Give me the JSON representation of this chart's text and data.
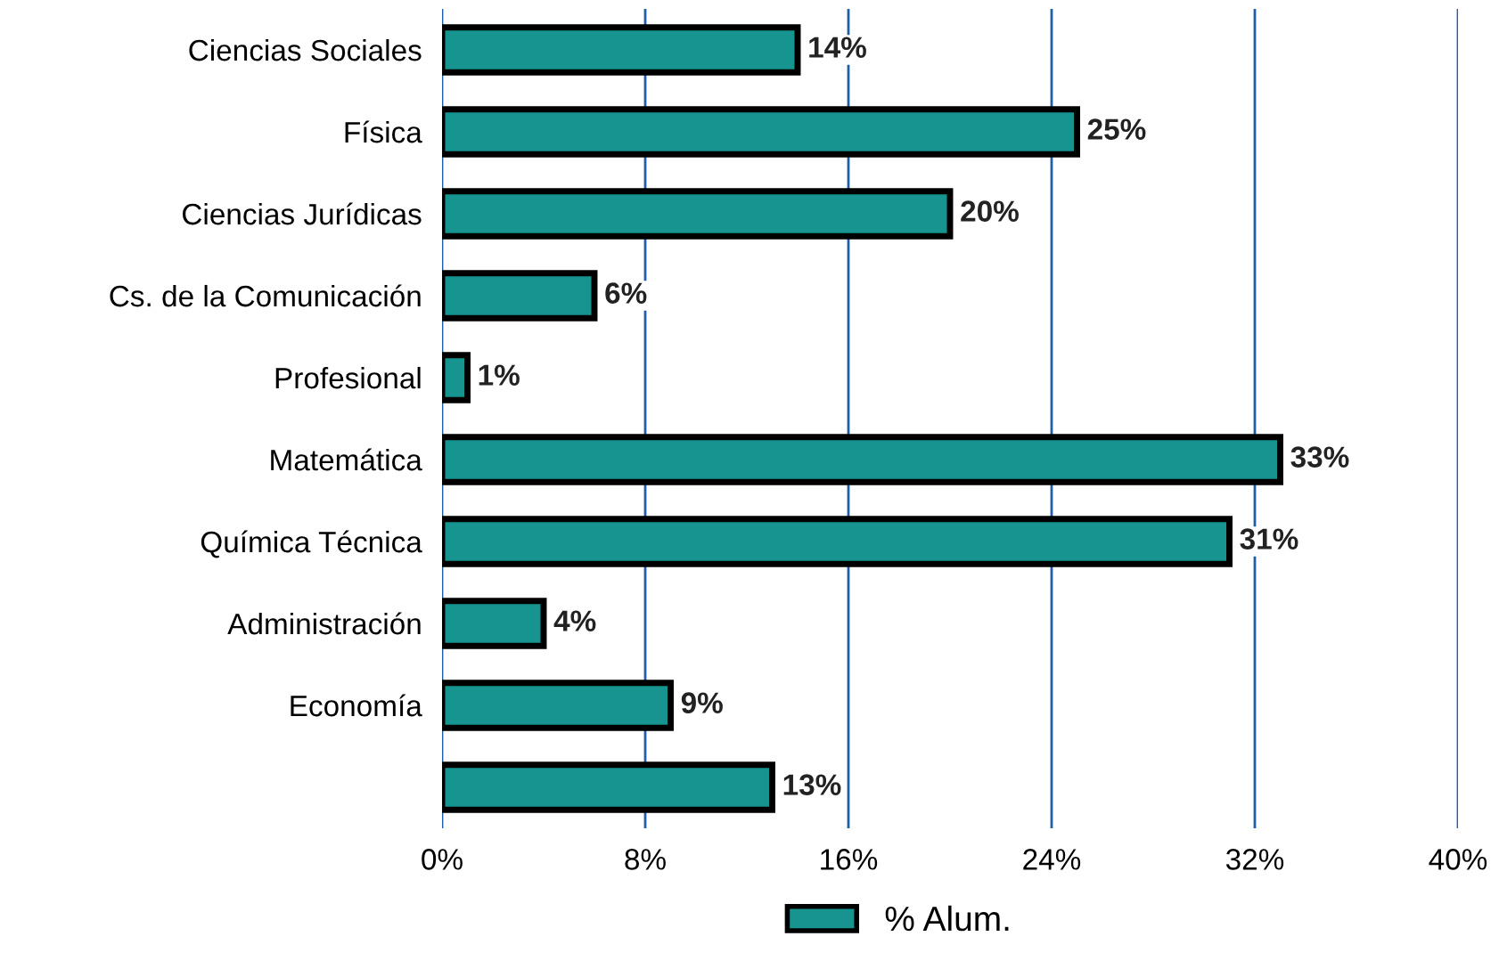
{
  "chart_data": {
    "type": "bar",
    "orientation": "horizontal",
    "categories": [
      "Ciencias Sociales",
      "Física",
      "Ciencias Jurídicas",
      "Cs. de la Comunicación",
      "Profesional",
      "Matemática",
      "Química Técnica",
      "Administración",
      "Economía",
      null
    ],
    "series": [
      {
        "name": "% Alum.",
        "color": "#17948f",
        "values": [
          14,
          25,
          20,
          6,
          1,
          33,
          31,
          4,
          9,
          13
        ],
        "value_labels": [
          "14%",
          "25%",
          "20%",
          "6%",
          "1%",
          "33%",
          "31%",
          "4%",
          "9%",
          "13%"
        ]
      }
    ],
    "xlim": [
      0,
      40
    ],
    "xticks": [
      {
        "value": 0,
        "label": "0%"
      },
      {
        "value": 8,
        "label": "8%"
      },
      {
        "value": 16,
        "label": "16%"
      },
      {
        "value": 24,
        "label": "24%"
      },
      {
        "value": 32,
        "label": "32%"
      },
      {
        "value": 40,
        "label": "40%"
      }
    ],
    "grid": "x",
    "legend": "bottom"
  }
}
